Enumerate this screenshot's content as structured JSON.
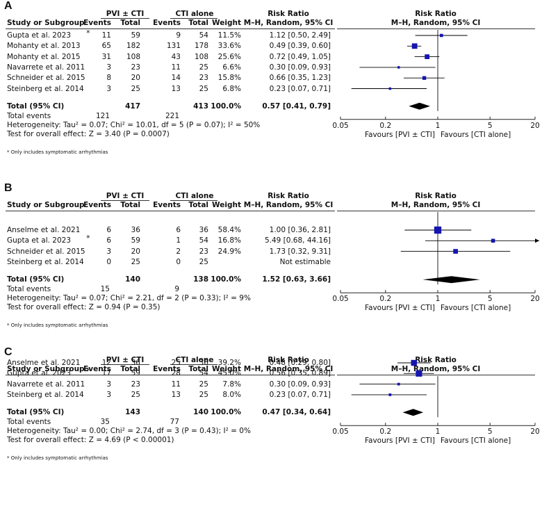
{
  "headers": {
    "study": "Study or Subgroup",
    "group1": "PVI ± CTI",
    "group2": "CTI alone",
    "events": "Events",
    "total": "Total",
    "weight": "Weight",
    "rr": "Risk Ratio",
    "method": "M–H, Random, 95% CI"
  },
  "favours": {
    "left": "Favours [PVI ± CTI]",
    "right": "Favours [CTI alone]"
  },
  "footnote": "* Only includes symptomatic arrhythmias",
  "colors": {
    "marker": "#1515b0",
    "diamond": "#000000",
    "text": "#111111"
  },
  "chart_data": [
    {
      "panel": "A",
      "type": "forest",
      "scale": "log",
      "xlim": [
        0.05,
        20
      ],
      "ticks": [
        "0.05",
        "0.2",
        "1",
        "5",
        "20"
      ],
      "tick_values": [
        0.05,
        0.2,
        1,
        5,
        20
      ],
      "rows": [
        {
          "study": "Gupta et al. 2023",
          "star": "*",
          "e1": "11",
          "t1": "59",
          "e2": "9",
          "t2": "54",
          "weight": "11.5%",
          "ci_text": "1.12 [0.50, 2.49]",
          "rr": 1.12,
          "lo": 0.5,
          "hi": 2.49,
          "w": 11.5
        },
        {
          "study": "Mohanty et al. 2013",
          "star": "",
          "e1": "65",
          "t1": "182",
          "e2": "131",
          "t2": "178",
          "weight": "33.6%",
          "ci_text": "0.49 [0.39, 0.60]",
          "rr": 0.49,
          "lo": 0.39,
          "hi": 0.6,
          "w": 33.6
        },
        {
          "study": "Mohanty et al. 2015",
          "star": "",
          "e1": "31",
          "t1": "108",
          "e2": "43",
          "t2": "108",
          "weight": "25.6%",
          "ci_text": "0.72 [0.49, 1.05]",
          "rr": 0.72,
          "lo": 0.49,
          "hi": 1.05,
          "w": 25.6
        },
        {
          "study": "Navarrete et al. 2011",
          "star": "",
          "e1": "3",
          "t1": "23",
          "e2": "11",
          "t2": "25",
          "weight": "6.6%",
          "ci_text": "0.30 [0.09, 0.93]",
          "rr": 0.3,
          "lo": 0.09,
          "hi": 0.93,
          "w": 6.6
        },
        {
          "study": "Schneider et al. 2015",
          "star": "",
          "e1": "8",
          "t1": "20",
          "e2": "14",
          "t2": "23",
          "weight": "15.8%",
          "ci_text": "0.66 [0.35, 1.23]",
          "rr": 0.66,
          "lo": 0.35,
          "hi": 1.23,
          "w": 15.8
        },
        {
          "study": "Steinberg et al. 2014",
          "star": "",
          "e1": "3",
          "t1": "25",
          "e2": "13",
          "t2": "25",
          "weight": "6.8%",
          "ci_text": "0.23 [0.07, 0.71]",
          "rr": 0.23,
          "lo": 0.07,
          "hi": 0.71,
          "w": 6.8
        }
      ],
      "total": {
        "label": "Total (95% CI)",
        "t1": "417",
        "t2": "413",
        "weight": "100.0%",
        "ci_text": "0.57 [0.41, 0.79]",
        "rr": 0.57,
        "lo": 0.41,
        "hi": 0.79
      },
      "total_events": {
        "label": "Total events",
        "e1": "121",
        "e2": "221"
      },
      "heterogeneity": "Heterogeneity: Tau² = 0.07; Chi² = 10.01, df = 5 (P = 0.07); I² = 50%",
      "overall": "Test for overall effect: Z = 3.40 (P = 0.0007)"
    },
    {
      "panel": "B",
      "type": "forest",
      "scale": "log",
      "xlim": [
        0.05,
        20
      ],
      "ticks": [
        "0.05",
        "0.2",
        "1",
        "5",
        "20"
      ],
      "tick_values": [
        0.05,
        0.2,
        1,
        5,
        20
      ],
      "rows": [
        {
          "study": "Anselme et al. 2021",
          "star": "",
          "e1": "6",
          "t1": "36",
          "e2": "6",
          "t2": "36",
          "weight": "58.4%",
          "ci_text": "1.00 [0.36, 2.81]",
          "rr": 1.0,
          "lo": 0.36,
          "hi": 2.81,
          "w": 58.4
        },
        {
          "study": "Gupta et al. 2023",
          "star": "*",
          "e1": "6",
          "t1": "59",
          "e2": "1",
          "t2": "54",
          "weight": "16.8%",
          "ci_text": "5.49 [0.68, 44.16]",
          "rr": 5.49,
          "lo": 0.68,
          "hi": 44.16,
          "w": 16.8
        },
        {
          "study": "Schneider et al. 2015",
          "star": "",
          "e1": "3",
          "t1": "20",
          "e2": "2",
          "t2": "23",
          "weight": "24.9%",
          "ci_text": "1.73 [0.32, 9.31]",
          "rr": 1.73,
          "lo": 0.32,
          "hi": 9.31,
          "w": 24.9
        },
        {
          "study": "Steinberg et al. 2014",
          "star": "",
          "e1": "0",
          "t1": "25",
          "e2": "0",
          "t2": "25",
          "weight": "",
          "ci_text": "Not estimable",
          "rr": null,
          "lo": null,
          "hi": null,
          "w": 0
        }
      ],
      "total": {
        "label": "Total (95% CI)",
        "t1": "140",
        "t2": "138",
        "weight": "100.0%",
        "ci_text": "1.52 [0.63, 3.66]",
        "rr": 1.52,
        "lo": 0.63,
        "hi": 3.66
      },
      "total_events": {
        "label": "Total events",
        "e1": "15",
        "e2": "9"
      },
      "heterogeneity": "Heterogeneity: Tau² = 0.07; Chi² = 2.21, df = 2 (P = 0.33); I² = 9%",
      "overall": "Test for overall effect: Z = 0.94 (P = 0.35)"
    },
    {
      "panel": "C",
      "type": "forest",
      "scale": "log",
      "xlim": [
        0.05,
        20
      ],
      "ticks": [
        "0.05",
        "0.2",
        "1",
        "5",
        "20"
      ],
      "tick_values": [
        0.05,
        0.2,
        1,
        5,
        20
      ],
      "rows": [
        {
          "study": "Anselme et al. 2021",
          "star": "",
          "e1": "12",
          "t1": "36",
          "e2": "25",
          "t2": "36",
          "weight": "39.2%",
          "ci_text": "0.48 [0.29, 0.80]",
          "rr": 0.48,
          "lo": 0.29,
          "hi": 0.8,
          "w": 39.2
        },
        {
          "study": "Gupta et al. 2023",
          "star": "*",
          "e1": "17",
          "t1": "59",
          "e2": "28",
          "t2": "54",
          "weight": "45.0%",
          "ci_text": "0.56 [0.35, 0.89]",
          "rr": 0.56,
          "lo": 0.35,
          "hi": 0.89,
          "w": 45.0
        },
        {
          "study": "Navarrete et al. 2011",
          "star": "",
          "e1": "3",
          "t1": "23",
          "e2": "11",
          "t2": "25",
          "weight": "7.8%",
          "ci_text": "0.30 [0.09, 0.93]",
          "rr": 0.3,
          "lo": 0.09,
          "hi": 0.93,
          "w": 7.8
        },
        {
          "study": "Steinberg et al. 2014",
          "star": "",
          "e1": "3",
          "t1": "25",
          "e2": "13",
          "t2": "25",
          "weight": "8.0%",
          "ci_text": "0.23 [0.07, 0.71]",
          "rr": 0.23,
          "lo": 0.07,
          "hi": 0.71,
          "w": 8.0
        }
      ],
      "total": {
        "label": "Total (95% CI)",
        "t1": "143",
        "t2": "140",
        "weight": "100.0%",
        "ci_text": "0.47 [0.34, 0.64]",
        "rr": 0.47,
        "lo": 0.34,
        "hi": 0.64
      },
      "total_events": {
        "label": "Total events",
        "e1": "35",
        "e2": "77"
      },
      "heterogeneity": "Heterogeneity: Tau² = 0.00; Chi² = 2.74, df = 3 (P = 0.43); I² = 0%",
      "overall": "Test for overall effect: Z = 4.69 (P < 0.00001)"
    }
  ]
}
